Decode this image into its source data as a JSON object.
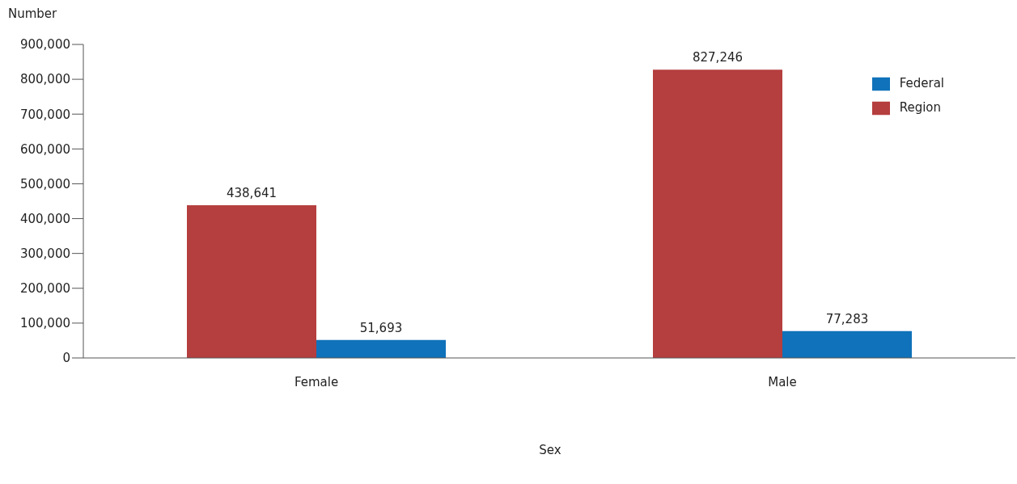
{
  "chart_data": {
    "type": "bar",
    "xlabel": "Sex",
    "ylabel": "Number",
    "categories": [
      "Female",
      "Male"
    ],
    "series": [
      {
        "name": "Region",
        "color": "#b53e3e",
        "values": [
          438641,
          827246
        ],
        "value_labels": [
          "438,641",
          "827,246"
        ]
      },
      {
        "name": "Federal",
        "color": "#1072ba",
        "values": [
          51693,
          77283
        ],
        "value_labels": [
          "51,693",
          "77,283"
        ]
      }
    ],
    "ylim": [
      0,
      900000
    ],
    "yticks": [
      0,
      {
        "value": 100000,
        "label": "100,000"
      },
      {
        "value": 200000,
        "label": "200,000"
      },
      {
        "value": 300000,
        "label": "300,000"
      },
      {
        "value": 400000,
        "label": "400,000"
      },
      {
        "value": 500000,
        "label": "500,000"
      },
      {
        "value": 600000,
        "label": "600,000"
      },
      {
        "value": 700000,
        "label": "700,000"
      },
      {
        "value": 800000,
        "label": "800,000"
      },
      {
        "value": 900000,
        "label": "900,000"
      }
    ],
    "legend": "top right",
    "grid": false
  }
}
